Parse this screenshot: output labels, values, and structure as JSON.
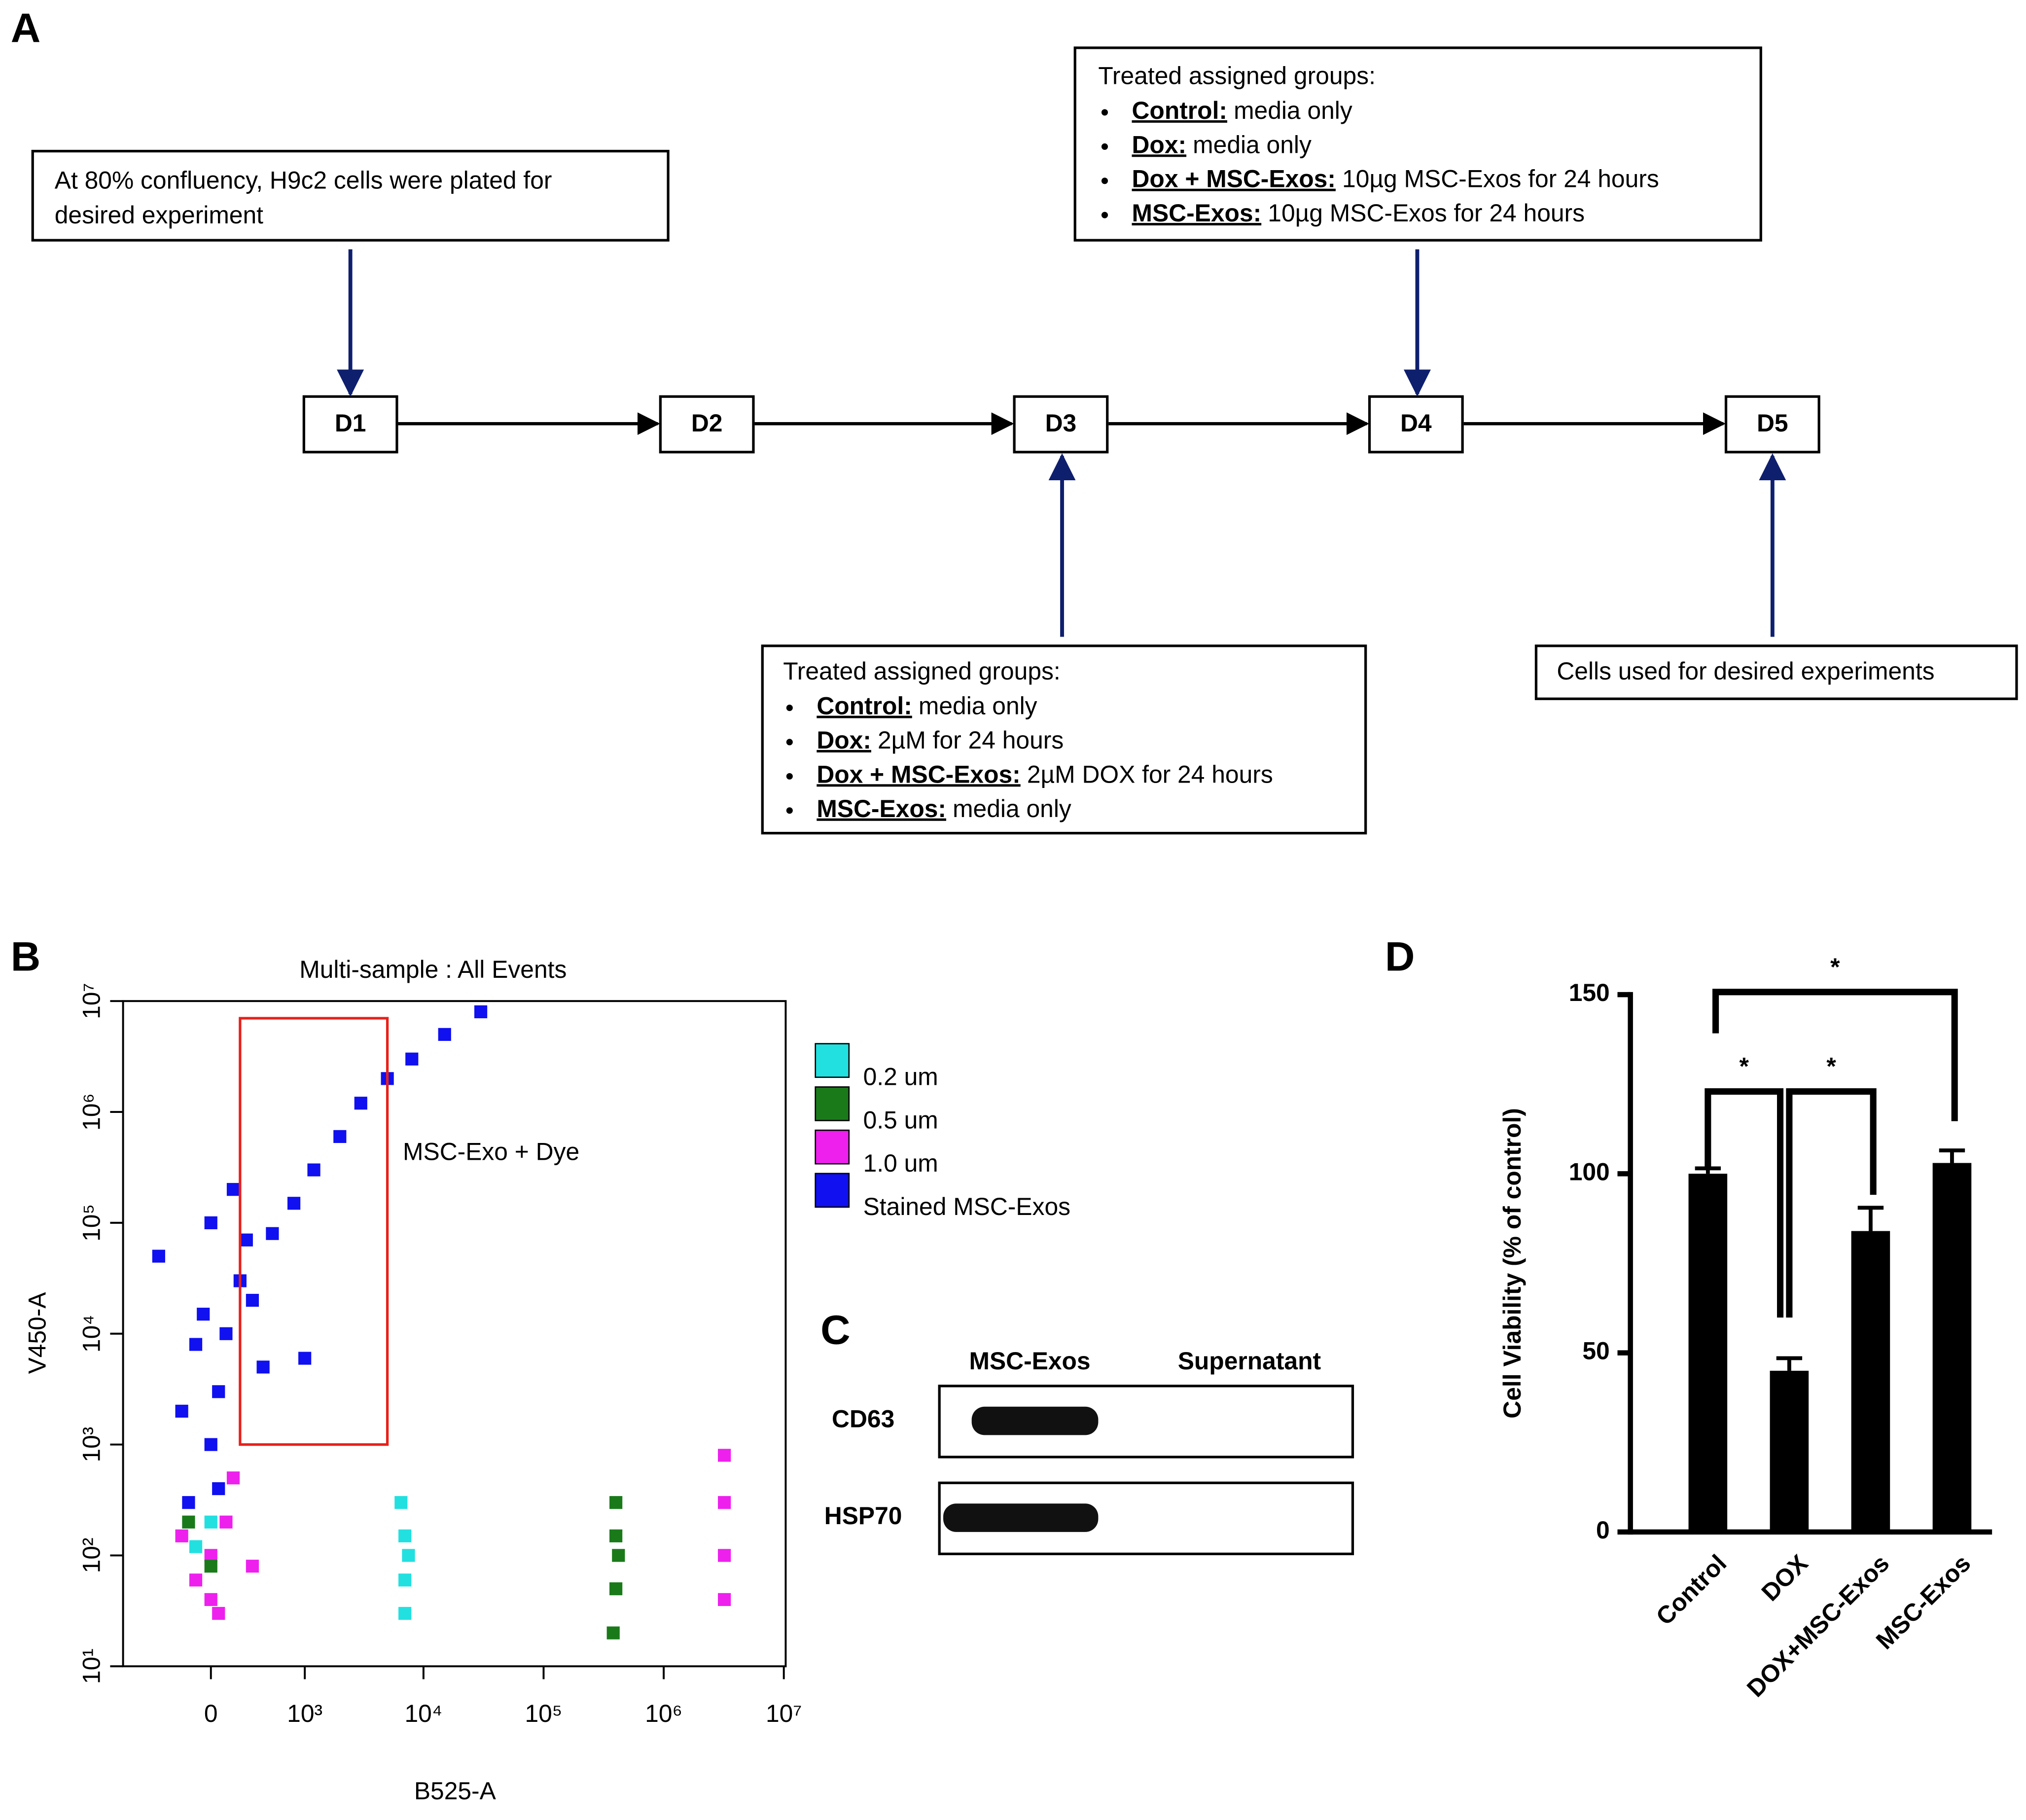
{
  "panel_a": {
    "label": "A",
    "start_note": [
      "At 80% confluency, H9c2 cells were plated for",
      "desired experiment"
    ],
    "days": [
      "D1",
      "D2",
      "D3",
      "D4",
      "D5"
    ],
    "day3_note": {
      "heading": "Treated assigned groups:",
      "items": [
        {
          "group": "Control:",
          "text": "media only"
        },
        {
          "group": "Dox:",
          "text": "2µM for 24 hours"
        },
        {
          "group": "Dox + MSC-Exos:",
          "text": "2µM DOX for 24 hours"
        },
        {
          "group": "MSC-Exos:",
          "text": "media only"
        }
      ]
    },
    "day4_note": {
      "heading": "Treated assigned groups:",
      "items": [
        {
          "group": "Control:",
          "text": "media only"
        },
        {
          "group": "Dox:",
          "text": "media only"
        },
        {
          "group": "Dox + MSC-Exos:",
          "text": "10µg MSC-Exos for 24 hours"
        },
        {
          "group": "MSC-Exos:",
          "text": "10µg MSC-Exos for 24 hours"
        }
      ]
    },
    "end_note": "Cells used for desired experiments"
  },
  "chart_data": [
    {
      "type": "scatter",
      "label": "B",
      "title": "Multi-sample : All Events",
      "x_label": "B525-A",
      "y_label": "V450-A",
      "xscale": "biexponential",
      "yscale": "log",
      "xlim": [
        -900,
        10000000
      ],
      "ylim": [
        10,
        10000000
      ],
      "xticks": [
        0,
        {
          "value": 1000,
          "label": "10³"
        },
        {
          "value": 10000,
          "label": "10⁴"
        },
        {
          "value": 100000,
          "label": "10⁵"
        },
        {
          "value": 1000000,
          "label": "10⁶"
        },
        {
          "value": 10000000,
          "label": "10⁷"
        }
      ],
      "yticks": [
        {
          "value": 10,
          "label": "10¹"
        },
        {
          "value": 100,
          "label": "10²"
        },
        {
          "value": 1000,
          "label": "10³"
        },
        {
          "value": 10000,
          "label": "10⁴"
        },
        {
          "value": 100000,
          "label": "10⁵"
        },
        {
          "value": 1000000,
          "label": "10⁶"
        },
        {
          "value": 10000000,
          "label": "10⁷"
        }
      ],
      "gate": {
        "label": "MSC-Exo + Dye",
        "x": [
          200,
          5000
        ],
        "y": [
          1000,
          7000000
        ],
        "color": "#e8201a"
      },
      "series": [
        {
          "name": "0.2 um",
          "color": "#22e0e0",
          "x": [
            0,
            -100,
            7000,
            7000,
            6500,
            7500,
            7000
          ],
          "y": [
            200,
            120,
            150,
            60,
            300,
            100,
            30
          ]
        },
        {
          "name": "0.5 um",
          "color": "#1a7a1a",
          "x": [
            0,
            -150,
            400000,
            400000,
            400000,
            380000,
            420000
          ],
          "y": [
            80,
            200,
            150,
            50,
            300,
            20,
            100
          ]
        },
        {
          "name": "1.0 um",
          "color": "#ee20ee",
          "x": [
            0,
            -100,
            100,
            50,
            -200,
            300,
            0,
            150,
            3200000,
            3200000,
            3200000,
            3200000
          ],
          "y": [
            100,
            60,
            200,
            30,
            150,
            80,
            40,
            500,
            300,
            100,
            40,
            800
          ]
        },
        {
          "name": "Stained MSC-Exos",
          "color": "#1010f0",
          "x": [
            0,
            50,
            -200,
            100,
            200,
            -100,
            300,
            500,
            800,
            1200,
            2000,
            3000,
            5000,
            8000,
            15000,
            30000,
            -400,
            0,
            150,
            50,
            -150,
            400,
            1000,
            -50,
            250
          ],
          "y": [
            1000,
            3000,
            2000,
            10000,
            30000,
            8000,
            20000,
            80000,
            150000,
            300000,
            600000,
            1200000,
            2000000,
            3000000,
            5000000,
            8000000,
            50000,
            100000,
            200000,
            400,
            300,
            5000,
            6000,
            15000,
            70000
          ]
        }
      ]
    },
    {
      "type": "bar",
      "label": "D",
      "y_label": "Cell Viability (% of control)",
      "categories": [
        "Control",
        "DOX",
        "DOX+MSC-Exos",
        "MSC-Exos"
      ],
      "values": [
        100,
        45,
        84,
        103
      ],
      "errors": [
        1.5,
        3.5,
        6.5,
        3.5
      ],
      "color": "#000000",
      "ylim": [
        0,
        150
      ],
      "yticks": [
        0,
        50,
        100,
        150
      ],
      "significance": [
        {
          "pair": [
            0,
            1
          ],
          "label": "*"
        },
        {
          "pair": [
            1,
            2
          ],
          "label": "*"
        },
        {
          "pair": [
            0,
            3
          ],
          "label": "*"
        }
      ]
    }
  ],
  "panel_c": {
    "label": "C",
    "columns": [
      "MSC-Exos",
      "Supernatant"
    ],
    "rows": [
      "CD63",
      "HSP70"
    ]
  }
}
